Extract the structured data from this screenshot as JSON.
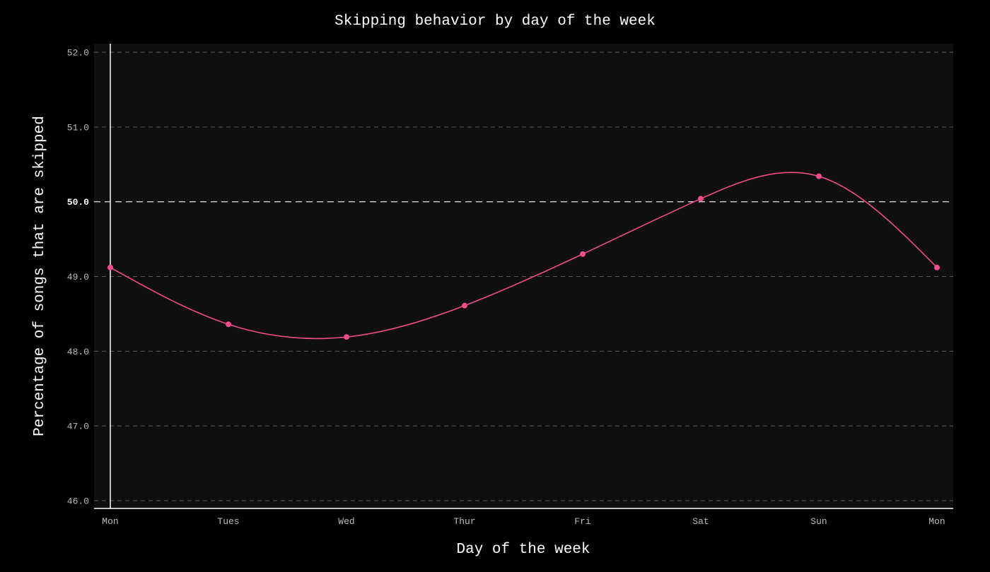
{
  "colors": {
    "background": "#000000",
    "plot_background": "#0f0f0f",
    "line": "#f04c8c",
    "grid": "#5a5a5a",
    "highlight_grid": "#d0d0d0",
    "axis": "#ffffff",
    "text": "#ffffff"
  },
  "chart_data": {
    "type": "line",
    "title": "Skipping behavior by day of the week",
    "xlabel": "Day of the week",
    "ylabel": "Percentage of songs that are skipped",
    "categories": [
      "Mon",
      "Tues",
      "Wed",
      "Thur",
      "Fri",
      "Sat",
      "Sun",
      "Mon"
    ],
    "series": [
      {
        "values": [
          49.12,
          48.36,
          48.19,
          48.61,
          49.3,
          50.04,
          50.34,
          49.12
        ]
      }
    ],
    "ylim": [
      46.0,
      52.0
    ],
    "yticks": [
      "46.0",
      "47.0",
      "48.0",
      "49.0",
      "50.0",
      "51.0",
      "52.0"
    ],
    "highlight_y": "50.0",
    "grid": "horizontal dashed",
    "smoothing": "spline"
  }
}
